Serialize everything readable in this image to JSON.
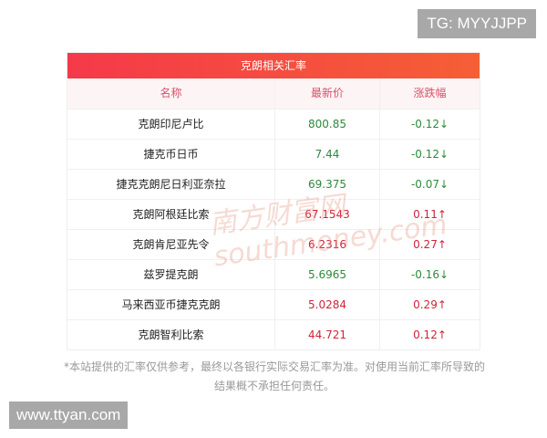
{
  "overlay": {
    "tag": "TG: MYYJJPP",
    "url": "www.ttyan.com",
    "watermark": "南方财富网 southmoney.com"
  },
  "table": {
    "title": "克朗相关汇率",
    "headers": [
      "名称",
      "最新价",
      "涨跌幅"
    ],
    "rows": [
      {
        "name": "克朗印尼卢比",
        "price": "800.85",
        "change": "-0.12↓",
        "dir": "down"
      },
      {
        "name": "捷克币日币",
        "price": "7.44",
        "change": "-0.12↓",
        "dir": "down"
      },
      {
        "name": "捷克克朗尼日利亚奈拉",
        "price": "69.375",
        "change": "-0.07↓",
        "dir": "down"
      },
      {
        "name": "克朗阿根廷比索",
        "price": "67.1543",
        "change": "0.11↑",
        "dir": "up"
      },
      {
        "name": "克朗肯尼亚先令",
        "price": "6.2316",
        "change": "0.27↑",
        "dir": "up"
      },
      {
        "name": "兹罗提克朗",
        "price": "5.6965",
        "change": "-0.16↓",
        "dir": "down"
      },
      {
        "name": "马来西亚币捷克克朗",
        "price": "5.0284",
        "change": "0.29↑",
        "dir": "up"
      },
      {
        "name": "克朗智利比索",
        "price": "44.721",
        "change": "0.12↑",
        "dir": "up"
      }
    ]
  },
  "note": "*本站提供的汇率仅供参考，最终以各银行实际交易汇率为准。对使用当前汇率所导致的结果概不承担任何责任。",
  "colors": {
    "up": "#d0233a",
    "down": "#2f8a3c",
    "header_gradient": [
      "#f5394a",
      "#f55f35"
    ]
  }
}
